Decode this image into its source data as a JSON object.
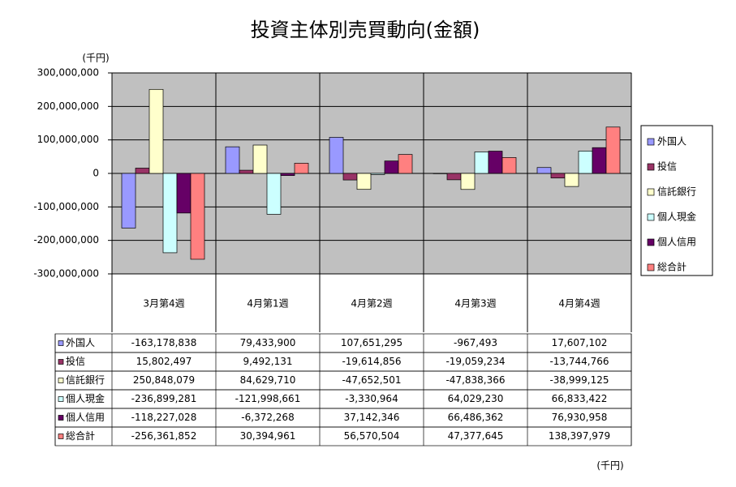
{
  "chart_data": {
    "type": "bar",
    "title": "投資主体別売買動向(金額)",
    "y_unit_label": "(千円)",
    "table_unit_label": "(千円)",
    "categories": [
      "3月第4週",
      "4月第1週",
      "4月第2週",
      "4月第3週",
      "4月第4週"
    ],
    "ylim": [
      -300000000,
      300000000
    ],
    "yticks": [
      {
        "value": -300000000,
        "label": "-300,000,000"
      },
      {
        "value": -200000000,
        "label": "-200,000,000"
      },
      {
        "value": -100000000,
        "label": "-100,000,000"
      },
      0,
      {
        "value": 100000000,
        "label": "100,000,000"
      },
      {
        "value": 200000000,
        "label": "200,000,000"
      },
      {
        "value": 300000000,
        "label": "300,000,000"
      }
    ],
    "grid": true,
    "legend": "right",
    "series": [
      {
        "name": "外国人",
        "color": "#9999ff",
        "values": [
          -163178838,
          79433900,
          107651295,
          -967493,
          17607102
        ],
        "value_labels": [
          "-163,178,838",
          "79,433,900",
          "107,651,295",
          "-967,493",
          "17,607,102"
        ]
      },
      {
        "name": "投信",
        "color": "#993366",
        "values": [
          15802497,
          9492131,
          -19614856,
          -19059234,
          -13744766
        ],
        "value_labels": [
          "15,802,497",
          "9,492,131",
          "-19,614,856",
          "-19,059,234",
          "-13,744,766"
        ]
      },
      {
        "name": "信託銀行",
        "color": "#ffffcc",
        "values": [
          250848079,
          84629710,
          -47652501,
          -47838366,
          -38999125
        ],
        "value_labels": [
          "250,848,079",
          "84,629,710",
          "-47,652,501",
          "-47,838,366",
          "-38,999,125"
        ]
      },
      {
        "name": "個人現金",
        "color": "#ccffff",
        "values": [
          -236899281,
          -121998661,
          -3330964,
          64029230,
          66833422
        ],
        "value_labels": [
          "-236,899,281",
          "-121,998,661",
          "-3,330,964",
          "64,029,230",
          "66,833,422"
        ]
      },
      {
        "name": "個人信用",
        "color": "#660066",
        "values": [
          -118227028,
          -6372268,
          37142346,
          66486362,
          76930958
        ],
        "value_labels": [
          "-118,227,028",
          "-6,372,268",
          "37,142,346",
          "66,486,362",
          "76,930,958"
        ]
      },
      {
        "name": "総合計",
        "color": "#ff8080",
        "values": [
          -256361852,
          30394961,
          56570504,
          47377645,
          138397979
        ],
        "value_labels": [
          "-256,361,852",
          "30,394,961",
          "56,570,504",
          "47,377,645",
          "138,397,979"
        ]
      }
    ]
  }
}
